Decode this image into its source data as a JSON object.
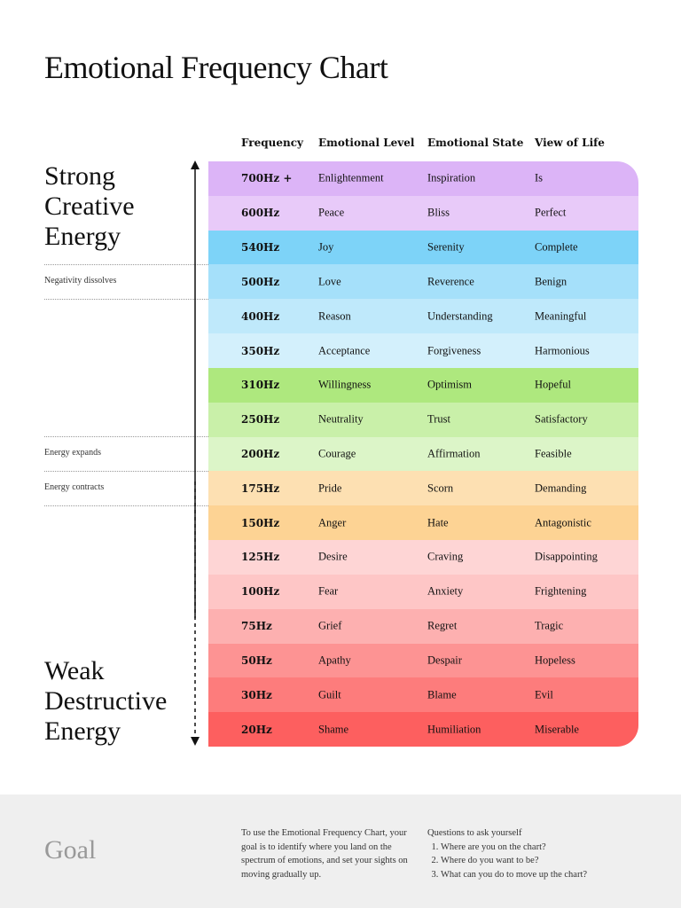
{
  "title": "Emotional Frequency Chart",
  "columns": [
    "Frequency",
    "Emotional Level",
    "Emotional State",
    "View of Life"
  ],
  "strong_heading": [
    "Strong",
    "Creative",
    "Energy"
  ],
  "weak_heading": [
    "Weak",
    "Destructive",
    "Energy"
  ],
  "notes": {
    "negativity": "Negativity dissolves",
    "expands": "Energy expands",
    "contracts": "Energy contracts"
  },
  "rows": [
    {
      "frequency": "700Hz +",
      "level": "Enlightenment",
      "state": "Inspiration",
      "view": "Is",
      "color": "#dcb4f7"
    },
    {
      "frequency": "600Hz",
      "level": "Peace",
      "state": "Bliss",
      "view": "Perfect",
      "color": "#e8caf9"
    },
    {
      "frequency": "540Hz",
      "level": "Joy",
      "state": "Serenity",
      "view": "Complete",
      "color": "#7dd3f8"
    },
    {
      "frequency": "500Hz",
      "level": "Love",
      "state": "Reverence",
      "view": "Benign",
      "color": "#a5e0fa"
    },
    {
      "frequency": "400Hz",
      "level": "Reason",
      "state": "Understanding",
      "view": "Meaningful",
      "color": "#bfe9fb"
    },
    {
      "frequency": "350Hz",
      "level": "Acceptance",
      "state": "Forgiveness",
      "view": "Harmonious",
      "color": "#d3f0fc"
    },
    {
      "frequency": "310Hz",
      "level": "Willingness",
      "state": "Optimism",
      "view": "Hopeful",
      "color": "#aee87e"
    },
    {
      "frequency": "250Hz",
      "level": "Neutrality",
      "state": "Trust",
      "view": "Satisfactory",
      "color": "#c9f0a9"
    },
    {
      "frequency": "200Hz",
      "level": "Courage",
      "state": "Affirmation",
      "view": "Feasible",
      "color": "#dcf5c8"
    },
    {
      "frequency": "175Hz",
      "level": "Pride",
      "state": "Scorn",
      "view": "Demanding",
      "color": "#fde0b2"
    },
    {
      "frequency": "150Hz",
      "level": "Anger",
      "state": "Hate",
      "view": "Antagonistic",
      "color": "#fdd394"
    },
    {
      "frequency": "125Hz",
      "level": "Desire",
      "state": "Craving",
      "view": "Disappointing",
      "color": "#fed5d5"
    },
    {
      "frequency": "100Hz",
      "level": "Fear",
      "state": "Anxiety",
      "view": "Frightening",
      "color": "#fec6c6"
    },
    {
      "frequency": "75Hz",
      "level": "Grief",
      "state": "Regret",
      "view": "Tragic",
      "color": "#fdb0b0"
    },
    {
      "frequency": "50Hz",
      "level": "Apathy",
      "state": "Despair",
      "view": "Hopeless",
      "color": "#fd9393"
    },
    {
      "frequency": "30Hz",
      "level": "Guilt",
      "state": "Blame",
      "view": "Evil",
      "color": "#fd7c7c"
    },
    {
      "frequency": "20Hz",
      "level": "Shame",
      "state": "Humiliation",
      "view": "Miserable",
      "color": "#fd5f5f"
    }
  ],
  "footer": {
    "goal": "Goal",
    "text": "To use the Emotional Frequency Chart, your goal is to identify where you land on the spectrum of emotions, and set your sights on moving gradually up.",
    "questions_title": "Questions to ask yourself",
    "questions": [
      "Where are you on the chart?",
      "Where do you want to be?",
      "What can you do to move up the chart?"
    ]
  }
}
